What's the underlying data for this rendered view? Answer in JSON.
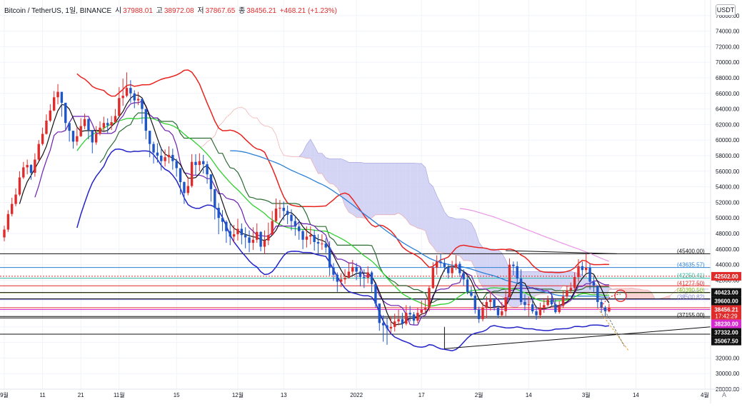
{
  "header": {
    "symbol": "Bitcoin / TetherUS, 1일, BINANCE",
    "open_label": "시",
    "open": "37988.01",
    "high_label": "고",
    "high": "38972.08",
    "low_label": "저",
    "low": "37867.65",
    "close_label": "종",
    "close": "38456.21",
    "change": "+468.21 (+1.23%)"
  },
  "toolbar": {
    "currency": "USDT",
    "auto_label": "A"
  },
  "colors": {
    "up": "#e02b2b",
    "down": "#1e56c8",
    "black": "#111111",
    "red_line": "#e8231f",
    "green_line": "#2fd02f",
    "cyan_line": "#3fd6e0",
    "blue_ma": "#2b80d6",
    "magenta_ma": "#d62ad0",
    "pink_ma": "#e995e6",
    "dark_green": "#2d6b34",
    "purple": "#6d1fb0",
    "bb": "#2323c8",
    "cloud_red": "#f6c7c7",
    "cloud_blue": "#c9c9f2"
  },
  "chart_data": {
    "type": "candlestick",
    "title": "Bitcoin / TetherUS, 1일, BINANCE",
    "ylim": [
      28000,
      78000
    ],
    "y_ticks": [
      28000,
      30000,
      32000,
      34000,
      36000,
      38000,
      40000,
      42000,
      44000,
      46000,
      48000,
      50000,
      52000,
      54000,
      56000,
      58000,
      60000,
      62000,
      64000,
      66000,
      68000,
      70000,
      72000,
      74000,
      76000
    ],
    "y_tick_labels": [
      "28000.00",
      "30000.00",
      "32000.00",
      "34000.00",
      "36000.00",
      "38000.00",
      "40000.00",
      "42000.00",
      "44000.00",
      "46000.00",
      "48000.00",
      "50000.00",
      "52000.00",
      "54000.00",
      "56000.00",
      "58000.00",
      "60000.00",
      "62000.00",
      "64000.00",
      "66000.00",
      "68000.00",
      "70000.00",
      "72000.00",
      "74000.00",
      "76000.00"
    ],
    "x_ticks": [
      {
        "i": 0,
        "label": "9월"
      },
      {
        "i": 10,
        "label": "11"
      },
      {
        "i": 20,
        "label": "21"
      },
      {
        "i": 30,
        "label": "11월"
      },
      {
        "i": 45,
        "label": "15"
      },
      {
        "i": 61,
        "label": "12월"
      },
      {
        "i": 73,
        "label": "13"
      },
      {
        "i": 92,
        "label": "2022"
      },
      {
        "i": 109,
        "label": "17"
      },
      {
        "i": 124,
        "label": "2월"
      },
      {
        "i": 137,
        "label": "14"
      },
      {
        "i": 152,
        "label": "3월"
      },
      {
        "i": 165,
        "label": "14"
      },
      {
        "i": 183,
        "label": "4월"
      }
    ],
    "candle_count": 159,
    "closes": [
      48500,
      50500,
      51800,
      53000,
      55200,
      56500,
      56800,
      55800,
      57500,
      59500,
      60800,
      62500,
      63800,
      65500,
      66200,
      64800,
      62200,
      61200,
      59800,
      60500,
      61800,
      62700,
      61300,
      59700,
      60800,
      61600,
      62200,
      61900,
      62300,
      63100,
      65400,
      65700,
      66700,
      66000,
      65100,
      65300,
      64000,
      61200,
      59500,
      58400,
      58000,
      57300,
      57800,
      58100,
      57300,
      56400,
      54600,
      53200,
      54100,
      57200,
      56800,
      57300,
      56900,
      55600,
      53700,
      51300,
      50000,
      49500,
      48300,
      47600,
      47900,
      48600,
      47800,
      47500,
      46800,
      47200,
      48200,
      46300,
      47100,
      47800,
      49600,
      51200,
      51300,
      50900,
      50400,
      49600,
      48900,
      48300,
      47200,
      47600,
      47800,
      46900,
      46700,
      46700,
      46200,
      43600,
      42700,
      41800,
      42100,
      42300,
      43100,
      43700,
      43100,
      42400,
      42300,
      43000,
      41500,
      39000,
      36500,
      36200,
      35800,
      36000,
      36700,
      37000,
      36400,
      37800,
      37600,
      36800,
      37800,
      38200,
      38500,
      41000,
      43600,
      44400,
      44200,
      43700,
      42900,
      43600,
      44100,
      42900,
      42100,
      40500,
      40000,
      38200,
      37000,
      38500,
      39200,
      39500,
      38500,
      37500,
      38000,
      39800,
      44000,
      43800,
      42200,
      39200,
      38800,
      38900,
      38000,
      37500,
      38400,
      38800,
      39500,
      38900,
      37900,
      38700,
      39900,
      40700,
      41000,
      42400,
      43800,
      43300,
      43600,
      41800,
      41300,
      39200,
      38500,
      37990,
      38456
    ],
    "highs": [
      49000,
      51000,
      52600,
      53800,
      56000,
      57200,
      57500,
      56900,
      58300,
      60000,
      61600,
      63300,
      64600,
      66300,
      67200,
      65800,
      63400,
      62400,
      61100,
      61700,
      62800,
      63400,
      62800,
      61000,
      61800,
      62400,
      63000,
      62800,
      63100,
      64000,
      66800,
      67900,
      68700,
      67700,
      66400,
      66200,
      65200,
      63300,
      61100,
      59800,
      59600,
      59100,
      58800,
      59200,
      58900,
      57600,
      56100,
      54700,
      55300,
      58200,
      58200,
      58300,
      58100,
      57300,
      55500,
      52900,
      51900,
      51000,
      49700,
      49200,
      49100,
      49900,
      49300,
      48800,
      48400,
      48800,
      49300,
      48300,
      48400,
      49400,
      50900,
      52500,
      52300,
      52100,
      51600,
      51100,
      50300,
      49800,
      48500,
      48900,
      48900,
      48500,
      47900,
      47900,
      47400,
      47000,
      44200,
      43000,
      42900,
      43400,
      44300,
      44600,
      44200,
      43600,
      43400,
      43800,
      43200,
      41500,
      38900,
      37500,
      37100,
      37400,
      37700,
      38200,
      37800,
      38800,
      38700,
      37900,
      38500,
      39400,
      39600,
      41300,
      44300,
      45200,
      45400,
      44800,
      44100,
      44500,
      45200,
      44400,
      43400,
      42500,
      41200,
      40600,
      38600,
      39200,
      39900,
      40600,
      39700,
      38600,
      39200,
      40700,
      44800,
      44400,
      44400,
      43400,
      40200,
      39900,
      39700,
      38700,
      39100,
      39700,
      40000,
      40300,
      39500,
      39300,
      40700,
      41300,
      41700,
      43000,
      44700,
      44400,
      45400,
      44100,
      42600,
      40700,
      39600,
      38700,
      38972
    ],
    "lows": [
      47000,
      48200,
      50200,
      51500,
      52800,
      55000,
      55600,
      54900,
      55300,
      57300,
      59300,
      60700,
      62300,
      63700,
      64600,
      63000,
      61300,
      59800,
      58900,
      59300,
      60400,
      61400,
      60100,
      58300,
      59400,
      60600,
      61200,
      60900,
      61300,
      62200,
      63100,
      64400,
      65500,
      64800,
      64100,
      64500,
      62100,
      60100,
      57800,
      57000,
      57100,
      56100,
      56600,
      57000,
      56200,
      55300,
      53000,
      51800,
      52900,
      53900,
      55500,
      56000,
      55700,
      54400,
      52100,
      49800,
      47900,
      48300,
      46800,
      46500,
      46800,
      47100,
      46600,
      46100,
      45600,
      45900,
      46800,
      45700,
      45400,
      46500,
      48100,
      49400,
      50000,
      49700,
      49200,
      48400,
      47700,
      47200,
      46000,
      46200,
      46600,
      45800,
      45300,
      45900,
      45500,
      42600,
      41900,
      40500,
      41100,
      41500,
      42200,
      42600,
      42000,
      41200,
      41000,
      41600,
      40400,
      38500,
      35500,
      34100,
      33700,
      35200,
      35400,
      36200,
      35800,
      36200,
      36700,
      36300,
      36500,
      37500,
      37700,
      38000,
      40900,
      42700,
      43600,
      43100,
      42200,
      42300,
      43300,
      42400,
      41300,
      40200,
      39800,
      37700,
      36500,
      36700,
      37100,
      38100,
      38100,
      37100,
      37300,
      37400,
      39800,
      42600,
      41500,
      38800,
      38100,
      37400,
      37700,
      36900,
      37100,
      37800,
      38600,
      38600,
      37700,
      37700,
      38400,
      39500,
      40300,
      40600,
      41800,
      42600,
      42900,
      40800,
      40500,
      38400,
      37800,
      37400,
      37868
    ],
    "opens": [
      47500,
      48500,
      50500,
      51800,
      53000,
      55200,
      56500,
      56800,
      55800,
      57500,
      59500,
      60800,
      62500,
      63800,
      65500,
      66200,
      64800,
      62200,
      61200,
      59800,
      60500,
      61800,
      62700,
      61300,
      59700,
      60800,
      61600,
      62200,
      61900,
      62300,
      63100,
      65400,
      65700,
      66700,
      66000,
      65100,
      65300,
      64000,
      61200,
      59500,
      58400,
      58000,
      57300,
      57800,
      58100,
      57300,
      56400,
      54600,
      53200,
      54100,
      57200,
      56800,
      57300,
      56900,
      55600,
      53700,
      51300,
      50000,
      49500,
      48300,
      47600,
      47900,
      48600,
      47800,
      47500,
      46800,
      47200,
      48200,
      46300,
      47100,
      47800,
      49600,
      51200,
      51300,
      50900,
      50400,
      49600,
      48900,
      48300,
      47200,
      47600,
      47800,
      46900,
      46700,
      46700,
      46200,
      43600,
      42700,
      41800,
      42100,
      42300,
      43100,
      43700,
      43100,
      42400,
      42300,
      43000,
      41500,
      39000,
      36500,
      36200,
      35800,
      36000,
      36700,
      37000,
      36400,
      37800,
      37600,
      36800,
      37800,
      38200,
      38500,
      41000,
      43600,
      44400,
      44200,
      43700,
      42900,
      43600,
      44100,
      42900,
      42100,
      40500,
      40000,
      38200,
      37000,
      38500,
      39200,
      39500,
      38500,
      37500,
      38000,
      39800,
      44000,
      43800,
      42200,
      39200,
      38800,
      38900,
      38000,
      37500,
      38400,
      38800,
      39500,
      38900,
      37900,
      38700,
      39900,
      40700,
      41000,
      42400,
      43800,
      43300,
      43600,
      41800,
      41300,
      39200,
      38500,
      37988
    ],
    "horizontal_lines": [
      {
        "price": 45400,
        "label": "(45400.00)",
        "color": "#111111"
      },
      {
        "price": 43635.57,
        "label": "(43635.57)",
        "color": "#2b80d6"
      },
      {
        "price": 42502,
        "label": "42502.00",
        "color": "#e02b2b",
        "style": "dotted",
        "badge": true
      },
      {
        "price": 42250.41,
        "label": "(42250.41)",
        "color": "#2fb5a0"
      },
      {
        "price": 41277.5,
        "label": "(41277.50)",
        "color": "#e02b2b"
      },
      {
        "price": 40390.5,
        "label": "(40390.50)",
        "color": "#7ab317"
      },
      {
        "price": 40423,
        "label": "40423.00",
        "color": "#111111",
        "badge": true
      },
      {
        "price": 39600,
        "label": "39600.00",
        "color": "#111111",
        "badge": true
      },
      {
        "price": 39500.8,
        "label": "(39500.82)",
        "color": "#8c8ce0"
      },
      {
        "price": 38456.21,
        "label": "38456.21",
        "color": "#e02b2b",
        "badge": true,
        "sub": "17:42:29"
      },
      {
        "price": 38230,
        "label": "38230.00",
        "color": "#d62ad0",
        "badge": true
      },
      {
        "price": 37155,
        "label": "(37155.00)",
        "color": "#111111"
      },
      {
        "price": 37332,
        "label": "37332.00",
        "color": "#111111",
        "badge": true
      },
      {
        "price": 35067.5,
        "label": "35067.50",
        "color": "#111111",
        "badge": true
      }
    ]
  }
}
